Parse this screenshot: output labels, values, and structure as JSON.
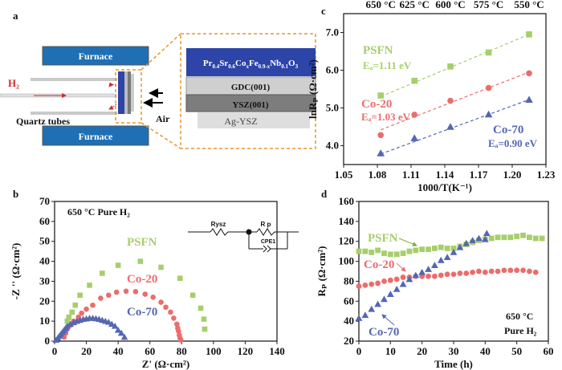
{
  "panel_labels": {
    "a": "a",
    "b": "b",
    "c": "c",
    "d": "d"
  },
  "colors": {
    "psfn": "#a6cf6b",
    "co20": "#ec6c6c",
    "co70": "#5566b2",
    "furnace": "#1f6fb5",
    "dashed_box": "#e8952c",
    "h2": "#d42a2a"
  },
  "schematic": {
    "furnace_top": "Furnace",
    "furnace_bottom": "Furnace",
    "gas": "H₂",
    "tubes": "Quartz tubes",
    "air": "Air",
    "layer_top_formula": [
      {
        "t": "Pr",
        "s": "0.4"
      },
      {
        "t": "Sr",
        "s": "0.6"
      },
      {
        "t": "Co",
        "s": "x"
      },
      {
        "t": "Fe",
        "s": "0.9-x"
      },
      {
        "t": "Nb",
        "s": "0.1"
      },
      {
        "t": "O",
        "s": "3"
      }
    ],
    "layer_gdc": "GDC(001)",
    "layer_ysz": "YSZ(001)",
    "layer_ag": "Ag-YSZ"
  },
  "chart_data": [
    {
      "id": "b",
      "type": "scatter",
      "xlabel": "Z' (Ω·cm²)",
      "ylabel": "-Z '' (Ω·cm²)",
      "xlim": [
        0,
        140
      ],
      "ylim": [
        0,
        70
      ],
      "xticks": [
        "0",
        "20",
        "40",
        "60",
        "80",
        "100",
        "120",
        "140"
      ],
      "yticks": [
        "0",
        "10",
        "20",
        "30",
        "40",
        "50",
        "60",
        "70"
      ],
      "condition": "650 °C  Pure H₂",
      "circuit": {
        "r1": "Rysz",
        "r2": "R p",
        "cpe": "CPE1"
      },
      "series": [
        {
          "name": "PSFN",
          "marker": "square",
          "color": "#a6cf6b",
          "points": [
            [
              8,
              10
            ],
            [
              9,
              12
            ],
            [
              11,
              14.5
            ],
            [
              13,
              18
            ],
            [
              16,
              23
            ],
            [
              22,
              28
            ],
            [
              30,
              34
            ],
            [
              40,
              38
            ],
            [
              54,
              40
            ],
            [
              67,
              37
            ],
            [
              79,
              31.5
            ],
            [
              87,
              23
            ],
            [
              92,
              16.5
            ],
            [
              94,
              11
            ],
            [
              94.5,
              6
            ]
          ]
        },
        {
          "name": "Co-20",
          "marker": "circle",
          "color": "#ec6c6c",
          "points": [
            [
              6,
              2
            ],
            [
              7,
              4
            ],
            [
              8,
              6
            ],
            [
              10,
              8
            ],
            [
              12,
              10
            ],
            [
              15,
              12
            ],
            [
              17,
              14
            ],
            [
              20,
              16
            ],
            [
              24,
              18
            ],
            [
              29,
              21.5
            ],
            [
              34,
              23
            ],
            [
              39,
              24.5
            ],
            [
              45,
              25
            ],
            [
              51,
              24.8
            ],
            [
              57,
              23.5
            ],
            [
              62,
              22
            ],
            [
              67,
              19.5
            ],
            [
              70,
              17
            ],
            [
              73,
              14.5
            ],
            [
              75,
              11.5
            ],
            [
              77,
              8.5
            ],
            [
              77.5,
              6.5
            ],
            [
              78,
              5
            ],
            [
              78.5,
              3
            ],
            [
              79,
              1.5
            ],
            [
              79.5,
              0.5
            ]
          ]
        },
        {
          "name": "Co-70",
          "marker": "triangle",
          "color": "#5566b2",
          "points": [
            [
              1,
              0.5
            ],
            [
              2,
              1.5
            ],
            [
              3,
              2.5
            ],
            [
              4,
              3.5
            ],
            [
              5,
              4.5
            ],
            [
              6,
              5.5
            ],
            [
              7,
              6.5
            ],
            [
              8,
              7.5
            ],
            [
              10,
              8.5
            ],
            [
              12,
              9.3
            ],
            [
              14,
              10
            ],
            [
              16,
              10.5
            ],
            [
              18,
              11
            ],
            [
              20,
              11.2
            ],
            [
              22,
              11.5
            ],
            [
              24,
              11.5
            ],
            [
              26,
              11.3
            ],
            [
              28,
              11
            ],
            [
              30,
              10.5
            ],
            [
              32,
              10
            ],
            [
              34,
              9.5
            ],
            [
              36,
              8.5
            ],
            [
              38,
              7.5
            ],
            [
              40,
              5.5
            ],
            [
              42,
              4
            ],
            [
              44,
              2
            ]
          ]
        }
      ]
    },
    {
      "id": "c",
      "type": "scatter",
      "xlabel": "1000/T(K⁻¹)",
      "ylabel": "lnRₚ (Ω·cm²)",
      "xlim": [
        1.05,
        1.23
      ],
      "ylim": [
        3.5,
        7.5
      ],
      "xticks": [
        "1.05",
        "1.08",
        "1.11",
        "1.14",
        "1.17",
        "1.20",
        "1.23"
      ],
      "yticks": [
        "4.0",
        "5.0",
        "6.0",
        "7.0"
      ],
      "top_axis": [
        {
          "label": "650 °C",
          "x": 1.083
        },
        {
          "label": "625 °C",
          "x": 1.113
        },
        {
          "label": "600 °C",
          "x": 1.145
        },
        {
          "label": "575 °C",
          "x": 1.179
        },
        {
          "label": "550 °C",
          "x": 1.215
        }
      ],
      "series": [
        {
          "name": "PSFN",
          "ea": "Eₐ=1.11 eV",
          "marker": "square",
          "color": "#a6cf6b",
          "x": [
            1.083,
            1.113,
            1.145,
            1.179,
            1.215
          ],
          "y": [
            5.33,
            5.72,
            6.1,
            6.47,
            6.95
          ],
          "fit": [
            5.3,
            6.95
          ]
        },
        {
          "name": "Co-20",
          "ea": "Eₐ=1.03 eV",
          "marker": "circle",
          "color": "#ec6c6c",
          "x": [
            1.083,
            1.113,
            1.145,
            1.179,
            1.215
          ],
          "y": [
            4.28,
            4.82,
            5.19,
            5.53,
            5.92
          ],
          "fit": [
            4.42,
            5.95
          ]
        },
        {
          "name": "Co-70",
          "ea": "Eₐ=0.90 eV",
          "marker": "triangle",
          "color": "#5566b2",
          "x": [
            1.083,
            1.113,
            1.145,
            1.179,
            1.215
          ],
          "y": [
            3.8,
            4.2,
            4.5,
            4.83,
            5.22
          ],
          "fit": [
            3.78,
            5.22
          ]
        }
      ]
    },
    {
      "id": "d",
      "type": "scatter",
      "xlabel": "Time (h)",
      "ylabel": "Rₚ (Ω·cm²)",
      "xlim": [
        0,
        60
      ],
      "ylim": [
        20,
        160
      ],
      "xticks": [
        "0",
        "10",
        "20",
        "30",
        "40",
        "50",
        "60"
      ],
      "yticks": [
        "20",
        "40",
        "60",
        "80",
        "100",
        "120",
        "140",
        "160"
      ],
      "condition_line1": "650 °C",
      "condition_line2": "Pure H₂",
      "series": [
        {
          "name": "PSFN",
          "marker": "square",
          "color": "#a6cf6b",
          "points": [
            [
              0,
              110
            ],
            [
              2,
              110
            ],
            [
              4,
              109
            ],
            [
              6,
              111
            ],
            [
              8,
              108
            ],
            [
              10,
              107
            ],
            [
              12,
              107
            ],
            [
              14,
              108
            ],
            [
              16,
              110
            ],
            [
              18,
              111
            ],
            [
              20,
              112
            ],
            [
              22,
              112
            ],
            [
              24,
              113
            ],
            [
              26,
              114
            ],
            [
              28,
              113
            ],
            [
              30,
              113
            ],
            [
              32,
              115
            ],
            [
              34,
              117
            ],
            [
              36,
              119
            ],
            [
              38,
              121
            ],
            [
              40,
              122
            ],
            [
              42,
              123
            ],
            [
              44,
              124
            ],
            [
              46,
              124
            ],
            [
              48,
              124
            ],
            [
              50,
              125
            ],
            [
              52,
              126
            ],
            [
              54,
              124
            ],
            [
              56,
              123
            ],
            [
              58,
              123
            ]
          ]
        },
        {
          "name": "Co-20",
          "marker": "circle",
          "color": "#ec6c6c",
          "points": [
            [
              0,
              75
            ],
            [
              2,
              76
            ],
            [
              4,
              77
            ],
            [
              6,
              78
            ],
            [
              8,
              80
            ],
            [
              10,
              81
            ],
            [
              12,
              82
            ],
            [
              14,
              84
            ],
            [
              16,
              84
            ],
            [
              18,
              85
            ],
            [
              20,
              85
            ],
            [
              22,
              85
            ],
            [
              24,
              85
            ],
            [
              26,
              86
            ],
            [
              28,
              87
            ],
            [
              30,
              87
            ],
            [
              32,
              88
            ],
            [
              34,
              88
            ],
            [
              36,
              89
            ],
            [
              38,
              90
            ],
            [
              40,
              89
            ],
            [
              42,
              90
            ],
            [
              44,
              90
            ],
            [
              46,
              91
            ],
            [
              48,
              91
            ],
            [
              50,
              91
            ],
            [
              52,
              91
            ],
            [
              54,
              90
            ],
            [
              56,
              89
            ]
          ]
        },
        {
          "name": "Co-70",
          "marker": "triangle",
          "color": "#5566b2",
          "points": [
            [
              0,
              43
            ],
            [
              2,
              46
            ],
            [
              4,
              52
            ],
            [
              6,
              57
            ],
            [
              8,
              62
            ],
            [
              10,
              67
            ],
            [
              12,
              72
            ],
            [
              14,
              77
            ],
            [
              16,
              82
            ],
            [
              18,
              86
            ],
            [
              20,
              89
            ],
            [
              22,
              92
            ],
            [
              24,
              96
            ],
            [
              26,
              101
            ],
            [
              28,
              104
            ],
            [
              30,
              109
            ],
            [
              32,
              114
            ],
            [
              34,
              118
            ],
            [
              36,
              121
            ],
            [
              38,
              123
            ],
            [
              40,
              122
            ],
            [
              40.5,
              128
            ]
          ]
        }
      ]
    }
  ]
}
